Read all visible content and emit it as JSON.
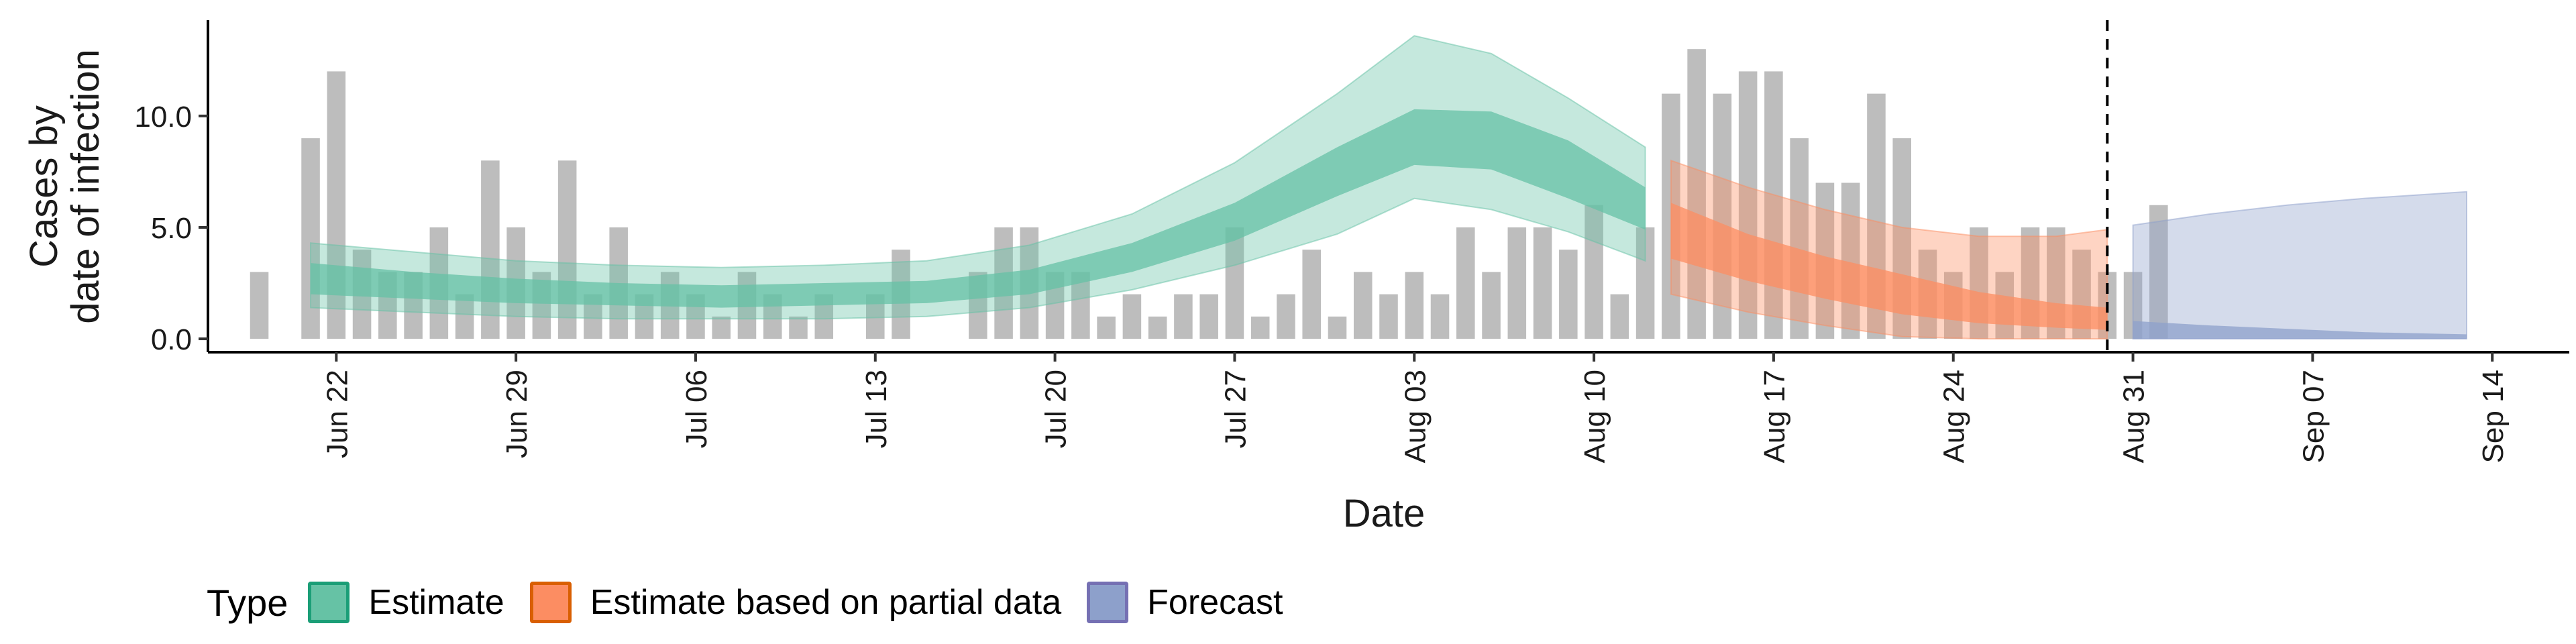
{
  "chart_data": {
    "type": "bar+ribbon",
    "xlabel": "Date",
    "ylabel_lines": [
      "Cases by",
      "date of infection"
    ],
    "ylim": [
      -0.6,
      14.3
    ],
    "yticks": [
      0,
      5,
      10
    ],
    "ytick_labels": [
      "0.0",
      "5.0",
      "10.0"
    ],
    "x_start_date": "2020-06-19",
    "x_range_dates": [
      "2020-06-17",
      "2020-09-17"
    ],
    "xticks": [
      "2020-06-22",
      "2020-06-29",
      "2020-07-06",
      "2020-07-13",
      "2020-07-20",
      "2020-07-27",
      "2020-08-03",
      "2020-08-10",
      "2020-08-17",
      "2020-08-24",
      "2020-08-31",
      "2020-09-07",
      "2020-09-14"
    ],
    "xtick_labels": [
      "Jun 22",
      "Jun 29",
      "Jul 06",
      "Jul 13",
      "Jul 20",
      "Jul 27",
      "Aug 03",
      "Aug 10",
      "Aug 17",
      "Aug 24",
      "Aug 31",
      "Sep 07",
      "Sep 14"
    ],
    "vline_date": "2020-08-30",
    "reported_cases": [
      3,
      0,
      9,
      12,
      4,
      3,
      3,
      5,
      2,
      8,
      5,
      3,
      8,
      2,
      5,
      2,
      3,
      2,
      1,
      3,
      2,
      1,
      2,
      0,
      2,
      4,
      0,
      0,
      3,
      5,
      5,
      3,
      3,
      1,
      2,
      1,
      2,
      2,
      5,
      1,
      2,
      4,
      1,
      3,
      2,
      3,
      2,
      5,
      3,
      5,
      5,
      4,
      6,
      2,
      5,
      11,
      13,
      11,
      12,
      12,
      9,
      7,
      7,
      11,
      9,
      4,
      3,
      5,
      3,
      5,
      5,
      4,
      3,
      3,
      6
    ],
    "series": [
      {
        "name": "Estimate",
        "color": "#66c2a5",
        "dates": [
          "2020-06-21",
          "2020-06-25",
          "2020-06-29",
          "2020-07-03",
          "2020-07-07",
          "2020-07-11",
          "2020-07-15",
          "2020-07-19",
          "2020-07-23",
          "2020-07-27",
          "2020-07-31",
          "2020-08-03",
          "2020-08-06",
          "2020-08-09",
          "2020-08-12"
        ],
        "median": [
          2.7,
          2.4,
          2.2,
          2.0,
          1.9,
          2.0,
          2.1,
          2.6,
          3.7,
          5.3,
          7.5,
          9.1,
          8.9,
          7.6,
          5.8
        ],
        "inner_lower": [
          2.0,
          1.8,
          1.6,
          1.5,
          1.4,
          1.5,
          1.6,
          2.0,
          3.0,
          4.4,
          6.4,
          7.8,
          7.6,
          6.3,
          4.9
        ],
        "inner_upper": [
          3.4,
          3.0,
          2.7,
          2.5,
          2.4,
          2.5,
          2.6,
          3.1,
          4.3,
          6.1,
          8.6,
          10.3,
          10.2,
          8.9,
          6.8
        ],
        "outer_lower": [
          1.4,
          1.2,
          1.0,
          0.9,
          0.9,
          0.9,
          1.0,
          1.4,
          2.2,
          3.3,
          4.7,
          6.3,
          5.8,
          4.8,
          3.5
        ],
        "outer_upper": [
          4.3,
          3.9,
          3.5,
          3.3,
          3.2,
          3.3,
          3.5,
          4.2,
          5.6,
          7.9,
          11.0,
          13.6,
          12.8,
          10.8,
          8.6
        ]
      },
      {
        "name": "Estimate based on partial data",
        "color": "#fc8d62",
        "dates": [
          "2020-08-13",
          "2020-08-16",
          "2020-08-19",
          "2020-08-22",
          "2020-08-25",
          "2020-08-28",
          "2020-08-30"
        ],
        "median": [
          4.7,
          3.6,
          2.8,
          2.1,
          1.5,
          1.1,
          0.9
        ],
        "inner_lower": [
          3.6,
          2.6,
          1.8,
          1.1,
          0.7,
          0.5,
          0.4
        ],
        "inner_upper": [
          6.1,
          4.7,
          3.7,
          2.9,
          2.1,
          1.6,
          1.4
        ],
        "outer_lower": [
          2.0,
          1.2,
          0.6,
          0.1,
          0.0,
          0.0,
          0.0
        ],
        "outer_upper": [
          8.0,
          6.8,
          5.8,
          5.0,
          4.6,
          4.6,
          4.9
        ]
      },
      {
        "name": "Forecast",
        "color": "#8da0cb",
        "dates": [
          "2020-08-31",
          "2020-09-03",
          "2020-09-06",
          "2020-09-09",
          "2020-09-13"
        ],
        "inner_lower": [
          0.0,
          0.0,
          0.0,
          0.0,
          0.0
        ],
        "inner_upper": [
          0.8,
          0.6,
          0.45,
          0.3,
          0.2
        ],
        "outer_lower": [
          0.0,
          0.0,
          0.0,
          0.0,
          0.0
        ],
        "outer_upper": [
          5.1,
          5.6,
          6.0,
          6.3,
          6.6
        ]
      }
    ],
    "legend": {
      "title": "Type",
      "placement": "bottom",
      "items": [
        {
          "label": "Estimate",
          "fill": "#66c2a5",
          "stroke": "#1b9e77"
        },
        {
          "label": "Estimate based on partial data",
          "fill": "#fc8d62",
          "stroke": "#d95f02"
        },
        {
          "label": "Forecast",
          "fill": "#8da0cb",
          "stroke": "#7570b3"
        }
      ]
    },
    "grid": false
  }
}
